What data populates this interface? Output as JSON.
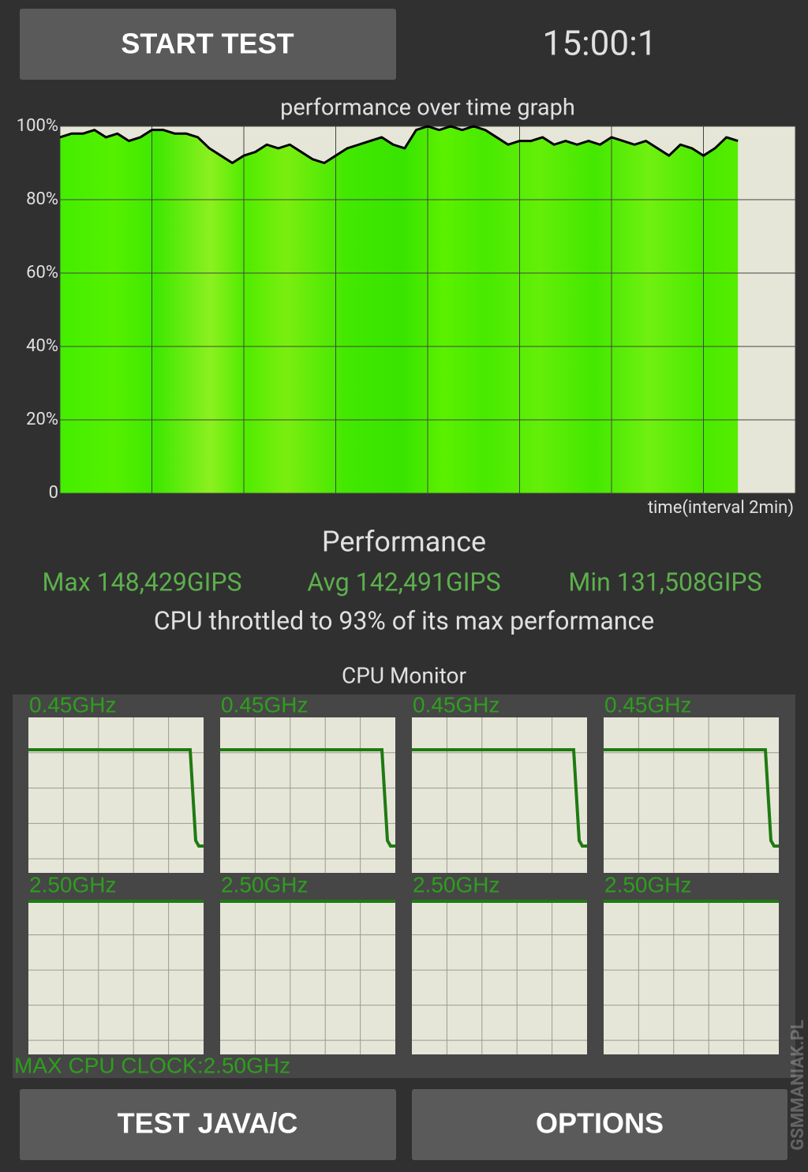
{
  "header": {
    "start_button": "START TEST",
    "timer": "15:00:1"
  },
  "chart_data": {
    "type": "line",
    "title": "performance over time graph",
    "x_label": "time(interval 2min)",
    "x": [
      0,
      0.25,
      0.5,
      0.75,
      1,
      1.25,
      1.5,
      1.75,
      2,
      2.25,
      2.5,
      2.75,
      3,
      3.25,
      3.5,
      3.75,
      4,
      4.25,
      4.5,
      4.75,
      5,
      5.25,
      5.5,
      5.75,
      6,
      6.25,
      6.5,
      6.75,
      7,
      7.25,
      7.5,
      7.75,
      8,
      8.25,
      8.5,
      8.75,
      9,
      9.25,
      9.5,
      9.75,
      10,
      10.25,
      10.5,
      10.75,
      11,
      11.25,
      11.5,
      11.75,
      12,
      12.25,
      12.5,
      12.75,
      13,
      13.25,
      13.5,
      13.75,
      14,
      14.25,
      14.5,
      14.75
    ],
    "values": [
      97,
      98,
      98,
      99,
      97,
      98,
      96,
      97,
      99,
      99,
      98,
      98,
      97,
      94,
      92,
      90,
      92,
      93,
      95,
      94,
      95,
      93,
      91,
      90,
      92,
      94,
      95,
      96,
      97,
      95,
      94,
      99,
      100,
      99,
      100,
      99,
      100,
      99,
      97,
      95,
      96,
      96,
      97,
      95,
      96,
      95,
      96,
      95,
      97,
      96,
      95,
      96,
      94,
      92,
      95,
      94,
      92,
      94,
      97,
      96
    ],
    "line_color": "#000000",
    "fill_color": "#44ee00",
    "xlim": [
      0,
      16
    ],
    "xticks": [
      0,
      2,
      4,
      6,
      8,
      10,
      12,
      14,
      16
    ],
    "ylim": [
      0,
      100
    ],
    "yticks": [
      0,
      {
        "value": 20,
        "label": "20%"
      },
      {
        "value": 40,
        "label": "40%"
      },
      {
        "value": 60,
        "label": "60%"
      },
      {
        "value": 80,
        "label": "80%"
      },
      {
        "value": 100,
        "label": "100%"
      }
    ],
    "grid": true
  },
  "performance": {
    "title": "Performance",
    "max": "Max 148,429GIPS",
    "avg": "Avg 142,491GIPS",
    "min": "Min 131,508GIPS",
    "throttle": "CPU throttled to 93% of its max performance"
  },
  "cpu_monitor": {
    "title": "CPU Monitor",
    "cores": [
      "0.45GHz",
      "0.45GHz",
      "0.45GHz",
      "0.45GHz",
      "2.50GHz",
      "2.50GHz",
      "2.50GHz",
      "2.50GHz"
    ],
    "max_clock": "MAX CPU CLOCK:2.50GHz"
  },
  "footer": {
    "buttons": [
      "TEST JAVA/C",
      "OPTIONS"
    ]
  },
  "watermark": "GSMMANIAK.PL"
}
